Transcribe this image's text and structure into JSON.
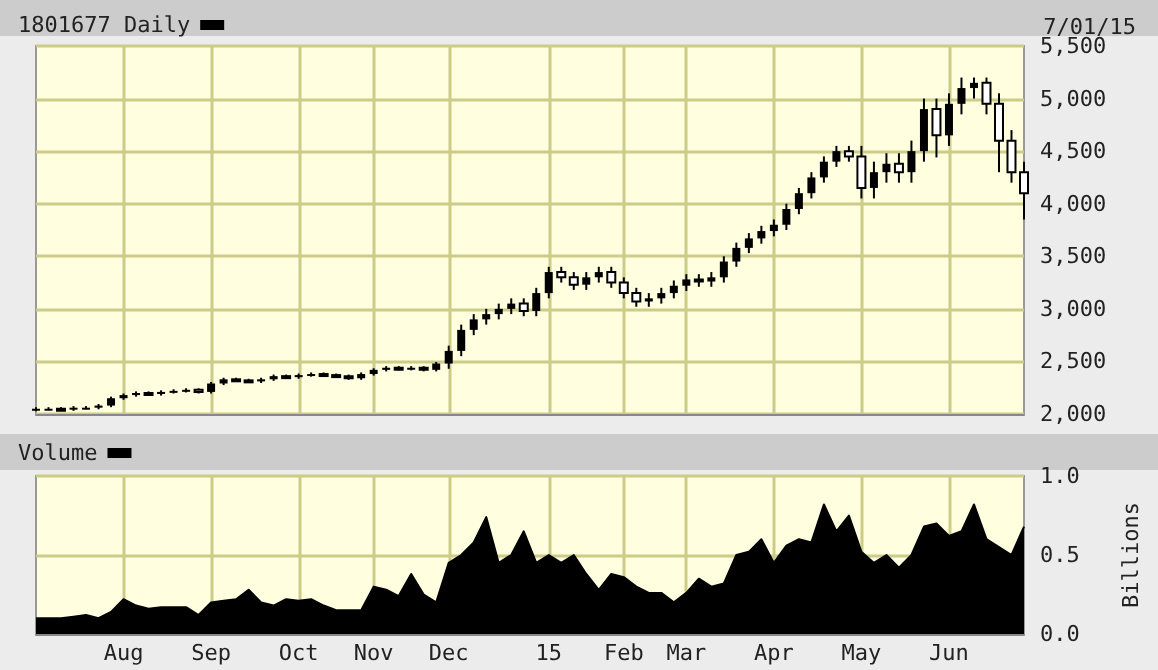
{
  "chart_data": [
    {
      "type": "candlestick",
      "categories": [
        null,
        null,
        null,
        null,
        null,
        null,
        null,
        null,
        null,
        null,
        null,
        null,
        null,
        null,
        null,
        null,
        null,
        null,
        null,
        null,
        null,
        null,
        null,
        null,
        null,
        null,
        null,
        null,
        null,
        null,
        null,
        null,
        null,
        null,
        null,
        null,
        null,
        null,
        null,
        null,
        null,
        null,
        null,
        null,
        null,
        null,
        null,
        null,
        null,
        null,
        null,
        null,
        null,
        null,
        null,
        null,
        null,
        null,
        null,
        null,
        null,
        null,
        null,
        null,
        null,
        null,
        null,
        null,
        null,
        null,
        null,
        null,
        null,
        null,
        null,
        null,
        null,
        null,
        null,
        null
      ],
      "series": [
        {
          "name": "1801677 Daily",
          "color": "#000000",
          "ohlc": [
            [
              2040,
              2065,
              2025,
              2050
            ],
            [
              2050,
              2065,
              2035,
              2050
            ],
            [
              2050,
              2065,
              2030,
              2045
            ],
            [
              2045,
              2075,
              2030,
              2060
            ],
            [
              2060,
              2075,
              2045,
              2060
            ],
            [
              2060,
              2095,
              2045,
              2080
            ],
            [
              2080,
              2165,
              2065,
              2150
            ],
            [
              2150,
              2195,
              2135,
              2180
            ],
            [
              2180,
              2215,
              2165,
              2200
            ],
            [
              2200,
              2215,
              2175,
              2190
            ],
            [
              2190,
              2225,
              2175,
              2210
            ],
            [
              2210,
              2235,
              2195,
              2220
            ],
            [
              2220,
              2245,
              2205,
              2230
            ],
            [
              2230,
              2245,
              2195,
              2210
            ],
            [
              2210,
              2305,
              2195,
              2290
            ],
            [
              2290,
              2345,
              2275,
              2330
            ],
            [
              2330,
              2345,
              2305,
              2320
            ],
            [
              2320,
              2335,
              2295,
              2310
            ],
            [
              2310,
              2345,
              2295,
              2330
            ],
            [
              2330,
              2375,
              2315,
              2360
            ],
            [
              2360,
              2375,
              2335,
              2350
            ],
            [
              2350,
              2385,
              2335,
              2370
            ],
            [
              2370,
              2395,
              2355,
              2380
            ],
            [
              2380,
              2395,
              2355,
              2370
            ],
            [
              2370,
              2385,
              2345,
              2360
            ],
            [
              2360,
              2375,
              2325,
              2340
            ],
            [
              2340,
              2395,
              2325,
              2380
            ],
            [
              2380,
              2435,
              2365,
              2420
            ],
            [
              2420,
              2455,
              2405,
              2440
            ],
            [
              2440,
              2455,
              2415,
              2430
            ],
            [
              2430,
              2455,
              2415,
              2440
            ],
            [
              2440,
              2455,
              2405,
              2420
            ],
            [
              2420,
              2495,
              2405,
              2480
            ],
            [
              2480,
              2650,
              2430,
              2600
            ],
            [
              2600,
              2850,
              2550,
              2800
            ],
            [
              2800,
              2950,
              2750,
              2900
            ],
            [
              2900,
              3000,
              2850,
              2950
            ],
            [
              2950,
              3050,
              2900,
              3000
            ],
            [
              3000,
              3100,
              2950,
              3050
            ],
            [
              3050,
              3100,
              2930,
              2980
            ],
            [
              2980,
              3200,
              2930,
              3150
            ],
            [
              3150,
              3400,
              3100,
              3350
            ],
            [
              3350,
              3400,
              3250,
              3300
            ],
            [
              3300,
              3350,
              3180,
              3230
            ],
            [
              3230,
              3350,
              3180,
              3300
            ],
            [
              3300,
              3400,
              3250,
              3350
            ],
            [
              3350,
              3400,
              3200,
              3250
            ],
            [
              3250,
              3300,
              3100,
              3150
            ],
            [
              3150,
              3200,
              3020,
              3070
            ],
            [
              3070,
              3150,
              3020,
              3100
            ],
            [
              3100,
              3200,
              3050,
              3150
            ],
            [
              3150,
              3270,
              3100,
              3220
            ],
            [
              3220,
              3330,
              3170,
              3280
            ],
            [
              3280,
              3330,
              3210,
              3260
            ],
            [
              3260,
              3350,
              3210,
              3300
            ],
            [
              3300,
              3500,
              3250,
              3450
            ],
            [
              3450,
              3630,
              3400,
              3580
            ],
            [
              3580,
              3720,
              3530,
              3670
            ],
            [
              3670,
              3790,
              3620,
              3740
            ],
            [
              3740,
              3850,
              3690,
              3800
            ],
            [
              3800,
              4000,
              3750,
              3950
            ],
            [
              3950,
              4150,
              3900,
              4100
            ],
            [
              4100,
              4300,
              4050,
              4250
            ],
            [
              4250,
              4450,
              4200,
              4400
            ],
            [
              4400,
              4550,
              4350,
              4500
            ],
            [
              4500,
              4550,
              4400,
              4450
            ],
            [
              4450,
              4550,
              4050,
              4150
            ],
            [
              4150,
              4400,
              4050,
              4300
            ],
            [
              4300,
              4480,
              4200,
              4380
            ],
            [
              4380,
              4480,
              4200,
              4300
            ],
            [
              4300,
              4600,
              4200,
              4500
            ],
            [
              4500,
              5000,
              4400,
              4900
            ],
            [
              4900,
              5000,
              4440,
              4650
            ],
            [
              4650,
              5050,
              4550,
              4950
            ],
            [
              4950,
              5200,
              4850,
              5100
            ],
            [
              5100,
              5200,
              5000,
              5150
            ],
            [
              5150,
              5200,
              4850,
              4950
            ],
            [
              4950,
              5050,
              4300,
              4600
            ],
            [
              4600,
              4700,
              4200,
              4300
            ],
            [
              4300,
              4400,
              3850,
              4100
            ]
          ]
        }
      ],
      "ylim": [
        2000,
        5500
      ],
      "yticks": [
        {
          "value": 2000,
          "label": "2,000"
        },
        {
          "value": 2500,
          "label": "2,500"
        },
        {
          "value": 3000,
          "label": "3,000"
        },
        {
          "value": 3500,
          "label": "3,500"
        },
        {
          "value": 4000,
          "label": "4,000"
        },
        {
          "value": 4500,
          "label": "4,500"
        },
        {
          "value": 5000,
          "label": "5,000"
        },
        {
          "value": 5500,
          "label": "5,500"
        }
      ],
      "annotations": [
        "7/01/15"
      ],
      "grid": true,
      "legend": "top left",
      "tick_labels": "y"
    },
    {
      "type": "area",
      "categories": [
        null,
        null,
        null,
        null,
        null,
        null,
        null,
        "Aug",
        null,
        null,
        null,
        null,
        null,
        null,
        "Sep",
        null,
        null,
        null,
        null,
        null,
        null,
        "Oct",
        null,
        null,
        null,
        null,
        null,
        "Nov",
        null,
        null,
        null,
        null,
        null,
        "Dec",
        null,
        null,
        null,
        null,
        null,
        null,
        null,
        "15",
        null,
        null,
        null,
        null,
        null,
        "Feb",
        null,
        null,
        null,
        null,
        "Mar",
        null,
        null,
        null,
        null,
        null,
        null,
        "Apr",
        null,
        null,
        null,
        null,
        null,
        null,
        "May",
        null,
        null,
        null,
        null,
        null,
        null,
        "Jun",
        null,
        null,
        null,
        null,
        null,
        null
      ],
      "series": [
        {
          "name": "Volume",
          "color": "#000000",
          "values": [
            0.1,
            0.1,
            0.1,
            0.11,
            0.12,
            0.1,
            0.14,
            0.22,
            0.18,
            0.16,
            0.17,
            0.17,
            0.17,
            0.12,
            0.2,
            0.21,
            0.22,
            0.28,
            0.2,
            0.18,
            0.22,
            0.21,
            0.22,
            0.18,
            0.15,
            0.15,
            0.15,
            0.3,
            0.28,
            0.24,
            0.38,
            0.25,
            0.2,
            0.45,
            0.5,
            0.58,
            0.74,
            0.45,
            0.5,
            0.65,
            0.45,
            0.5,
            0.45,
            0.5,
            0.38,
            0.28,
            0.38,
            0.36,
            0.3,
            0.26,
            0.26,
            0.2,
            0.26,
            0.35,
            0.3,
            0.32,
            0.5,
            0.52,
            0.6,
            0.45,
            0.56,
            0.6,
            0.58,
            0.82,
            0.65,
            0.75,
            0.52,
            0.45,
            0.5,
            0.42,
            0.5,
            0.68,
            0.7,
            0.62,
            0.65,
            0.82,
            0.6,
            0.55,
            0.5,
            0.68
          ]
        }
      ],
      "ylim": [
        0,
        1
      ],
      "yticks": [
        {
          "value": 0,
          "label": "0.0"
        },
        {
          "value": 0.5,
          "label": "0.5"
        },
        {
          "value": 1,
          "label": "1.0"
        }
      ],
      "ylabel": "Billions",
      "grid": true,
      "legend": "top left"
    }
  ]
}
